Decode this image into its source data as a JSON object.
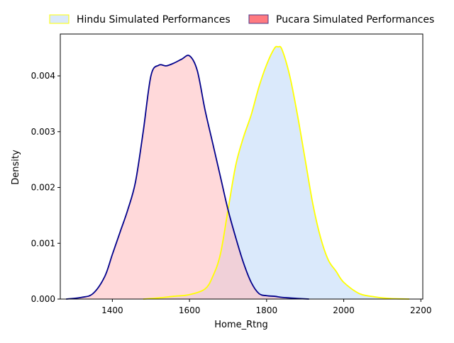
{
  "chart_data": {
    "type": "area",
    "title": "",
    "xlabel": "Home_Rtng",
    "ylabel": "Density",
    "xlim": [
      1265,
      2205
    ],
    "ylim": [
      0,
      0.00475
    ],
    "xticks": [
      1400,
      1600,
      1800,
      2000,
      2200
    ],
    "yticks": [
      0.0,
      0.001,
      0.002,
      0.003,
      0.004
    ],
    "ytick_labels": [
      "0.000",
      "0.001",
      "0.002",
      "0.003",
      "0.004"
    ],
    "grid": false,
    "legend_placement": "top, above plot",
    "series": [
      {
        "name": "Hindu Simulated Performances",
        "fill_color": "#dae9fb",
        "line_color": "#ffff00",
        "x": [
          1480,
          1520,
          1560,
          1600,
          1640,
          1660,
          1680,
          1700,
          1720,
          1740,
          1760,
          1780,
          1800,
          1820,
          1830,
          1840,
          1860,
          1880,
          1900,
          1920,
          1940,
          1960,
          1980,
          2000,
          2040,
          2080,
          2120,
          2170
        ],
        "y": [
          0.0,
          2e-05,
          5e-05,
          8e-05,
          0.00018,
          0.0004,
          0.0008,
          0.0016,
          0.0024,
          0.0029,
          0.0033,
          0.0038,
          0.0042,
          0.00449,
          0.00452,
          0.00447,
          0.004,
          0.0033,
          0.0025,
          0.0017,
          0.0011,
          0.0007,
          0.0005,
          0.0003,
          0.0001,
          4e-05,
          1e-05,
          0.0
        ]
      },
      {
        "name": "Pucara Simulated Performances",
        "fill_color": "#ffbfc2",
        "line_color": "#00008b",
        "x": [
          1280,
          1320,
          1350,
          1380,
          1400,
          1420,
          1440,
          1460,
          1480,
          1500,
          1520,
          1540,
          1560,
          1580,
          1600,
          1620,
          1640,
          1660,
          1680,
          1700,
          1720,
          1740,
          1760,
          1780,
          1800,
          1820,
          1840,
          1860,
          1880,
          1910
        ],
        "y": [
          0.0,
          3e-05,
          0.0001,
          0.0004,
          0.0008,
          0.0012,
          0.0016,
          0.0021,
          0.003,
          0.004,
          0.00419,
          0.00418,
          0.00423,
          0.0043,
          0.00436,
          0.0041,
          0.0034,
          0.0028,
          0.0022,
          0.0016,
          0.0011,
          0.00065,
          0.0003,
          0.0001,
          6e-05,
          5e-05,
          3e-05,
          2e-05,
          1e-05,
          0.0
        ]
      }
    ]
  }
}
